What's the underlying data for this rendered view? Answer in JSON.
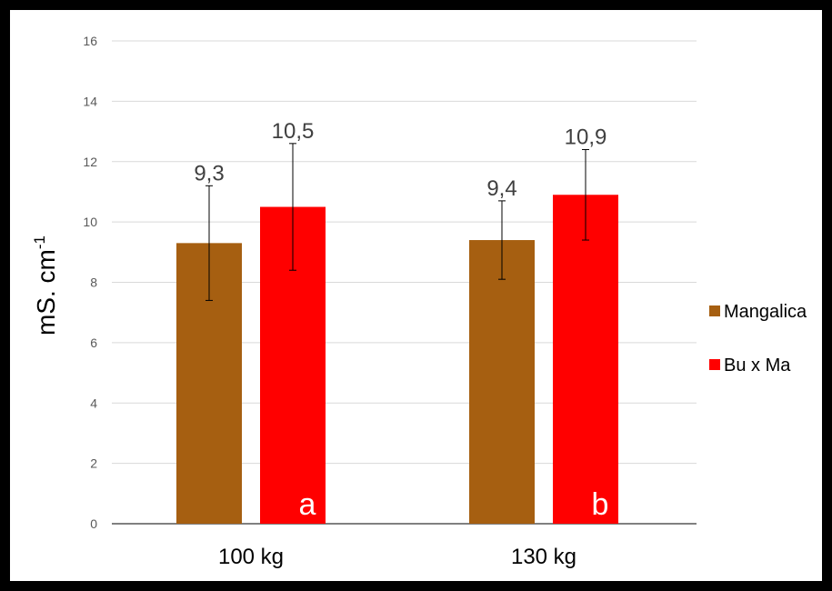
{
  "chart_data": {
    "type": "bar",
    "title": "",
    "xlabel": "",
    "ylabel": "mS. cm",
    "ylabel_superscript": "-1",
    "categories": [
      "100 kg",
      "130 kg"
    ],
    "ylim": [
      0,
      16
    ],
    "yticks": [
      0,
      2,
      4,
      6,
      8,
      10,
      12,
      14,
      16
    ],
    "grid": true,
    "legend_position": "right",
    "series": [
      {
        "name": "Mangalica",
        "color": "#a65f11",
        "values": [
          9.3,
          9.4
        ],
        "errors": [
          1.9,
          1.3
        ],
        "data_labels": [
          "9,3",
          "9,4"
        ]
      },
      {
        "name": "Bu x Ma",
        "color": "#ff0000",
        "values": [
          10.5,
          10.9
        ],
        "errors": [
          2.1,
          1.5
        ],
        "data_labels": [
          "10,5",
          "10,9"
        ]
      }
    ],
    "significance_letters": [
      "a",
      "b"
    ]
  }
}
